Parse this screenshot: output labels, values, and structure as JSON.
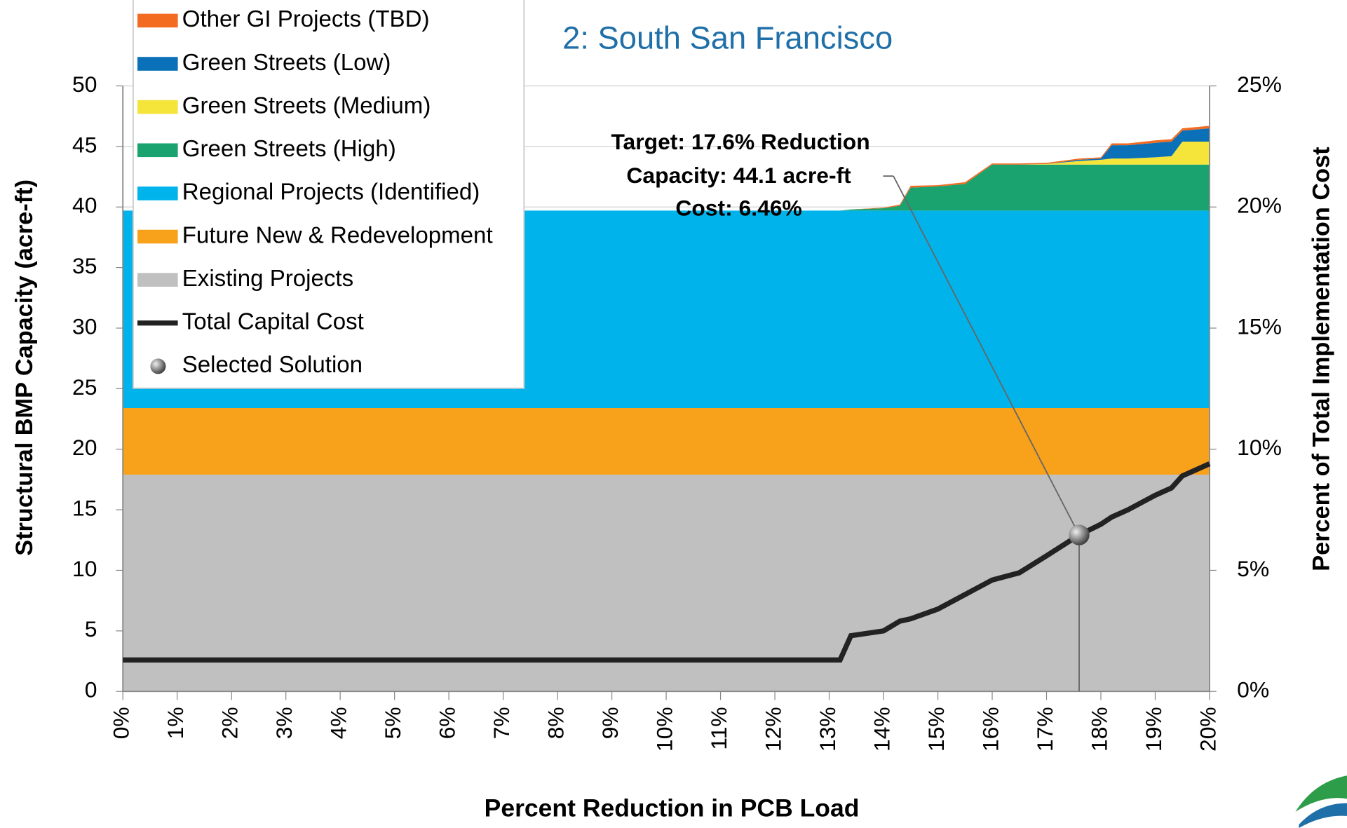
{
  "chart_data": {
    "type": "stacked_area",
    "title": "2: South San Francisco",
    "x_label": "Percent Reduction in PCB Load",
    "y_label": "Structural BMP Capacity (acre-ft)",
    "y2_label": "Percent of Total Implementation Cost",
    "x": [
      0,
      13.2,
      13.4,
      14,
      14.3,
      14.5,
      15,
      15.5,
      16,
      16.5,
      17,
      17.6,
      18,
      18.2,
      18.5,
      19,
      19.3,
      19.5,
      20
    ],
    "series": [
      {
        "name": "Other GI Projects (TBD)",
        "color": "#f26b21",
        "values": [
          0,
          0,
          0,
          0.05,
          0.1,
          0.15,
          0.1,
          0.15,
          0.1,
          0.1,
          0.1,
          0.1,
          0.1,
          0.15,
          0.15,
          0.2,
          0.2,
          0.2,
          0.2
        ]
      },
      {
        "name": "Green Streets (Low)",
        "color": "#0a70b8",
        "values": [
          0,
          0,
          0,
          0,
          0,
          0,
          0,
          0,
          0,
          0,
          0,
          0.1,
          0.1,
          1.1,
          1.1,
          1.2,
          1.2,
          0.9,
          1.1
        ]
      },
      {
        "name": "Green Streets (Medium)",
        "color": "#f5e43a",
        "values": [
          0,
          0,
          0,
          0,
          0,
          0,
          0,
          0,
          0,
          0,
          0.05,
          0.3,
          0.4,
          0.5,
          0.5,
          0.6,
          0.7,
          1.9,
          1.9
        ]
      },
      {
        "name": "Green Streets (High)",
        "color": "#1aa36f",
        "values": [
          0,
          0,
          0.1,
          0.2,
          0.4,
          1.9,
          2.0,
          2.2,
          3.8,
          3.8,
          3.8,
          3.8,
          3.8,
          3.8,
          3.8,
          3.8,
          3.8,
          3.8,
          3.8
        ]
      },
      {
        "name": "Regional Projects (Identified)",
        "color": "#00b4eb",
        "values": [
          16.3,
          16.3,
          16.3,
          16.3,
          16.3,
          16.3,
          16.3,
          16.3,
          16.3,
          16.3,
          16.3,
          16.3,
          16.3,
          16.3,
          16.3,
          16.3,
          16.3,
          16.3,
          16.3
        ]
      },
      {
        "name": "Future New & Redevelopment",
        "color": "#f8a11a",
        "values": [
          5.5,
          5.5,
          5.5,
          5.5,
          5.5,
          5.5,
          5.5,
          5.5,
          5.5,
          5.5,
          5.5,
          5.5,
          5.5,
          5.5,
          5.5,
          5.5,
          5.5,
          5.5,
          5.5
        ]
      },
      {
        "name": "Existing Projects",
        "color": "#c0c0c0",
        "values": [
          17.9,
          17.9,
          17.9,
          17.9,
          17.9,
          17.9,
          17.9,
          17.9,
          17.9,
          17.9,
          17.9,
          17.9,
          17.9,
          17.9,
          17.9,
          17.9,
          17.9,
          17.9,
          17.9
        ]
      },
      {
        "name": "Total Capital Cost",
        "type": "line",
        "axis": "y2",
        "color": "#222222",
        "values": [
          1.3,
          1.3,
          2.3,
          2.5,
          2.9,
          3.0,
          3.4,
          4.0,
          4.6,
          4.9,
          5.6,
          6.46,
          6.9,
          7.2,
          7.5,
          8.1,
          8.4,
          8.9,
          9.4
        ]
      }
    ],
    "selected": {
      "name": "Selected Solution",
      "x": 17.6,
      "value": 6.46
    },
    "annotation": [
      "Target: 17.6% Reduction",
      "Capacity: 44.1 acre-ft",
      "Cost: 6.46%"
    ],
    "xlim": [
      0,
      20
    ],
    "xticks": [
      {
        "value": 0,
        "label": "0%"
      },
      {
        "value": 1,
        "label": "1%"
      },
      {
        "value": 2,
        "label": "2%"
      },
      {
        "value": 3,
        "label": "3%"
      },
      {
        "value": 4,
        "label": "4%"
      },
      {
        "value": 5,
        "label": "5%"
      },
      {
        "value": 6,
        "label": "6%"
      },
      {
        "value": 7,
        "label": "7%"
      },
      {
        "value": 8,
        "label": "8%"
      },
      {
        "value": 9,
        "label": "9%"
      },
      {
        "value": 10,
        "label": "10%"
      },
      {
        "value": 11,
        "label": "11%"
      },
      {
        "value": 12,
        "label": "12%"
      },
      {
        "value": 13,
        "label": "13%"
      },
      {
        "value": 14,
        "label": "14%"
      },
      {
        "value": 15,
        "label": "15%"
      },
      {
        "value": 16,
        "label": "16%"
      },
      {
        "value": 17,
        "label": "17%"
      },
      {
        "value": 18,
        "label": "18%"
      },
      {
        "value": 19,
        "label": "19%"
      },
      {
        "value": 20,
        "label": "20%"
      }
    ],
    "ylim": [
      0,
      50
    ],
    "yticks": [
      0,
      5,
      10,
      15,
      20,
      25,
      30,
      35,
      40,
      45,
      50
    ],
    "y2lim": [
      0,
      25
    ],
    "y2ticks": [
      {
        "value": 0,
        "label": "0%"
      },
      {
        "value": 5,
        "label": "5%"
      },
      {
        "value": 10,
        "label": "10%"
      },
      {
        "value": 15,
        "label": "15%"
      },
      {
        "value": 20,
        "label": "20%"
      },
      {
        "value": 25,
        "label": "25%"
      }
    ],
    "grid": true
  }
}
